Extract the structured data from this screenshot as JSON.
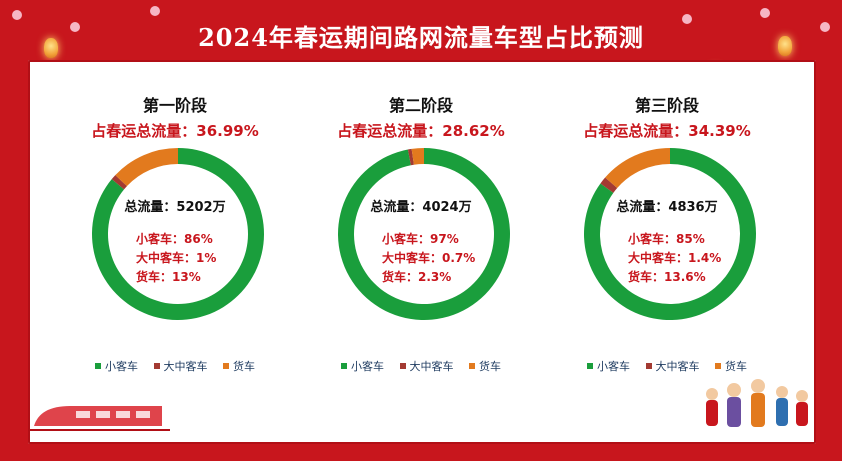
{
  "title": "2024年春运期间路网流量车型占比预测",
  "colors": {
    "background": "#c8161d",
    "small": "#1a9e3c",
    "medium": "#a33a32",
    "truck": "#e27a1e",
    "accent": "#c8161d"
  },
  "chart_data": [
    {
      "type": "pie",
      "donut": true,
      "title": "第一阶段",
      "share_label": "占春运总流量：36.99%",
      "total_label": "总流量：5202万",
      "categories": [
        "小客车",
        "大中客车",
        "货车"
      ],
      "values": [
        86,
        1,
        13
      ],
      "value_labels": [
        "小客车：86%",
        "大中客车：1%",
        "货车：13%"
      ],
      "legend": "bottom"
    },
    {
      "type": "pie",
      "donut": true,
      "title": "第二阶段",
      "share_label": "占春运总流量：28.62%",
      "total_label": "总流量：4024万",
      "categories": [
        "小客车",
        "大中客车",
        "货车"
      ],
      "values": [
        97,
        0.7,
        2.3
      ],
      "value_labels": [
        "小客车：97%",
        "大中客车：0.7%",
        "货车：2.3%"
      ],
      "legend": "bottom"
    },
    {
      "type": "pie",
      "donut": true,
      "title": "第三阶段",
      "share_label": "占春运总流量：34.39%",
      "total_label": "总流量：4836万",
      "categories": [
        "小客车",
        "大中客车",
        "货车"
      ],
      "values": [
        85,
        1.4,
        13.6
      ],
      "value_labels": [
        "小客车：85%",
        "大中客车：1.4%",
        "货车：13.6%"
      ],
      "legend": "bottom"
    }
  ]
}
